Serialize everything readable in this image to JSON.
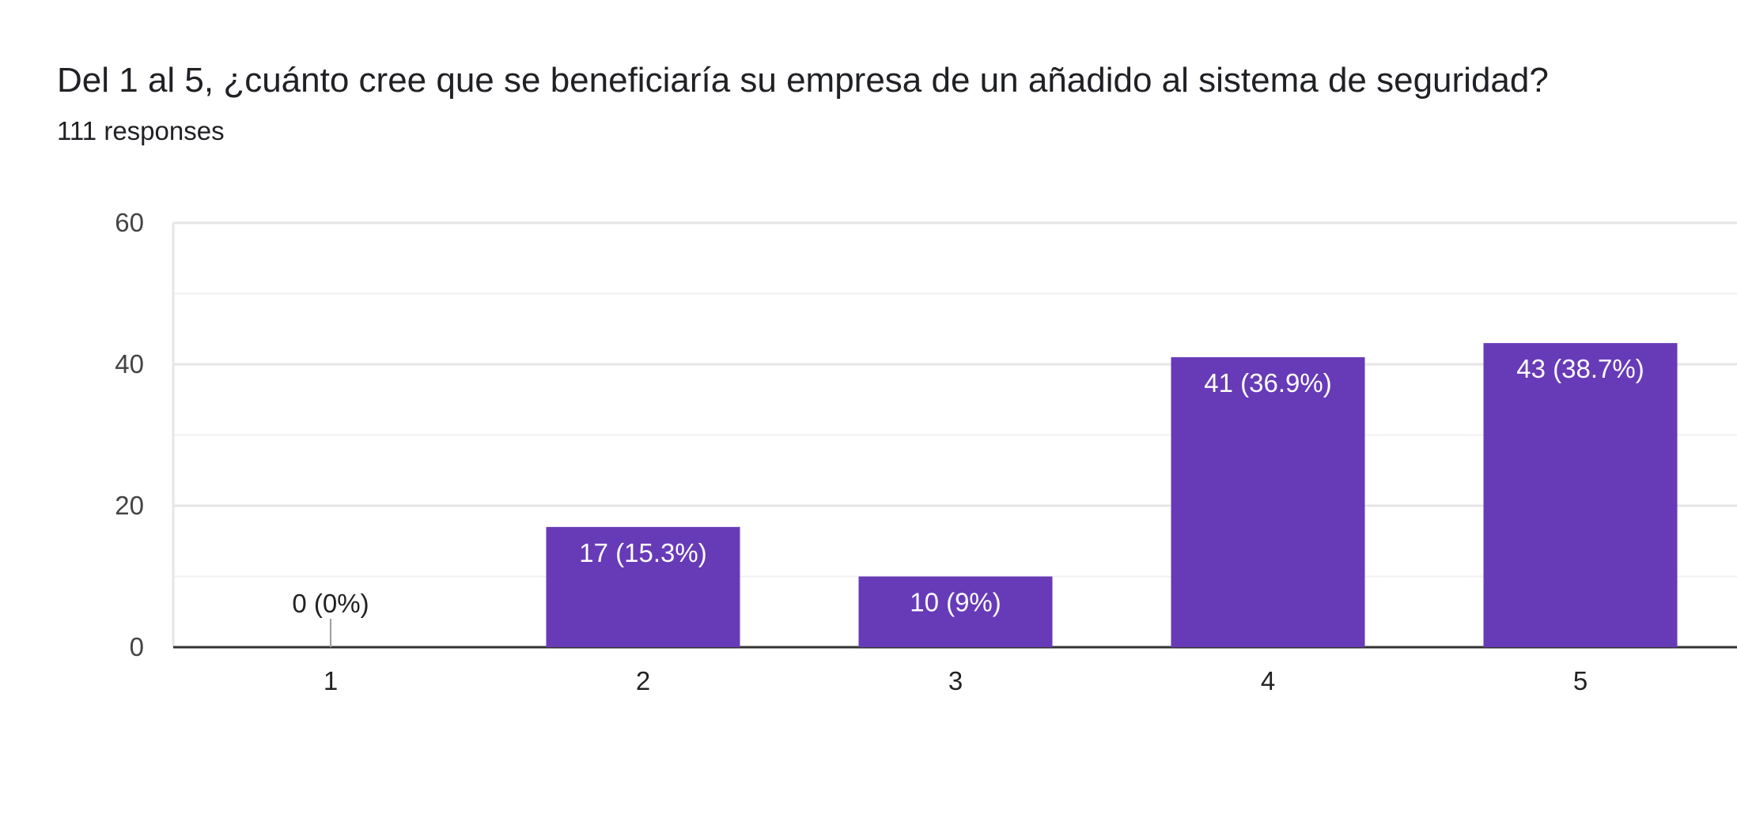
{
  "header": {
    "title": "Del 1 al 5, ¿cuánto cree que se beneficiaría su empresa de un añadido al sistema de seguridad?",
    "subtitle": "111 responses"
  },
  "chart_data": {
    "type": "bar",
    "title": "Del 1 al 5, ¿cuánto cree que se beneficiaría su empresa de un añadido al sistema de seguridad?",
    "subtitle": "111 responses",
    "xlabel": "",
    "ylabel": "",
    "categories": [
      "1",
      "2",
      "3",
      "4",
      "5"
    ],
    "values": [
      0,
      17,
      10,
      41,
      43
    ],
    "data_labels": [
      "0 (0%)",
      "17 (15.3%)",
      "10 (9%)",
      "41 (36.9%)",
      "43 (38.7%)"
    ],
    "ylim": [
      0,
      60
    ],
    "yticks": [
      0,
      20,
      40,
      60
    ],
    "yticks_labels": [
      "0",
      "20",
      "40",
      "60"
    ],
    "grid": true,
    "legend": "none",
    "colors": {
      "bar": "#673ab7",
      "bar_label": "#ffffff",
      "outside_label": "#222222",
      "grid_major": "#e6e6e6",
      "grid_minor": "#f1f1f1",
      "axis": "#333333",
      "zero_marker": "#9e9e9e"
    }
  }
}
